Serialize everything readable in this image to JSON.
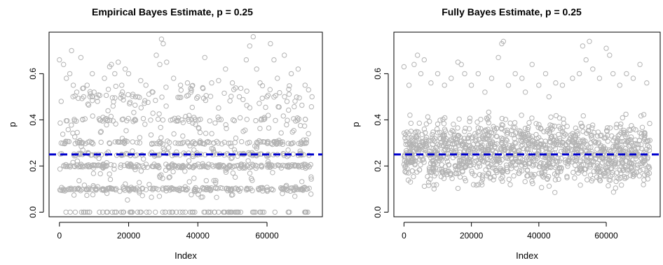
{
  "chart_data": [
    {
      "type": "scatter",
      "title": "Empirical Bayes Estimate, p = 0.25",
      "xlabel": "Index",
      "ylabel": "p",
      "xlim": [
        -3000,
        76000
      ],
      "ylim": [
        -0.02,
        0.78
      ],
      "xticks": [
        0,
        20000,
        40000,
        60000
      ],
      "xtick_labels": [
        "0",
        "20000",
        "40000",
        "60000"
      ],
      "yticks": [
        0.0,
        0.2,
        0.4,
        0.6
      ],
      "ytick_labels": [
        "0.0",
        "0.2",
        "0.4",
        "0.6"
      ],
      "grid": false,
      "colors": {
        "points": "#b3b3b3",
        "reference_line": "#0000cd"
      },
      "reference_line": {
        "y": 0.25,
        "style": "dashed"
      },
      "x_range": [
        0,
        73000
      ],
      "levels": [
        {
          "y": 0.0,
          "x_from": 0,
          "x_to": 73000,
          "count": 90
        },
        {
          "y": 0.1,
          "x_from": 0,
          "x_to": 73000,
          "count": 200
        },
        {
          "y": 0.2,
          "x_from": 0,
          "x_to": 73000,
          "count": 200
        },
        {
          "y": 0.25,
          "x_from": 0,
          "x_to": 73000,
          "count": 100
        },
        {
          "y": 0.3,
          "x_from": 0,
          "x_to": 73000,
          "count": 120
        },
        {
          "y": 0.4,
          "x_from": 0,
          "x_to": 73000,
          "count": 60
        },
        {
          "y": 0.5,
          "x_from": 0,
          "x_to": 73000,
          "count": 30
        }
      ],
      "series": [
        {
          "x": [
            0,
            500,
            1200,
            2000,
            3000,
            3500,
            4000,
            5000,
            6200,
            7000,
            8000,
            9500,
            10000,
            11000,
            13000,
            14500,
            15000,
            16000,
            17000,
            18000,
            19000,
            20000,
            22000,
            23500,
            25000,
            27000,
            28000,
            29000,
            29500,
            30000,
            31000,
            33000,
            35000,
            37000,
            38000,
            40000,
            42000,
            44000,
            46000,
            48000,
            50000,
            52000,
            54000,
            55000,
            56000,
            57000,
            58000,
            60000,
            61000,
            62000,
            63000,
            65000,
            67000,
            69000,
            71000,
            72000,
            73000
          ],
          "y": [
            0.66,
            0.48,
            0.64,
            0.58,
            0.6,
            0.7,
            0.55,
            0.52,
            0.67,
            0.5,
            0.55,
            0.6,
            0.52,
            0.48,
            0.58,
            0.63,
            0.64,
            0.6,
            0.65,
            0.55,
            0.62,
            0.6,
            0.5,
            0.57,
            0.55,
            0.52,
            0.68,
            0.64,
            0.75,
            0.73,
            0.65,
            0.58,
            0.55,
            0.56,
            0.52,
            0.5,
            0.67,
            0.56,
            0.57,
            0.62,
            0.56,
            0.5,
            0.66,
            0.72,
            0.76,
            0.62,
            0.56,
            0.5,
            0.73,
            0.66,
            0.58,
            0.68,
            0.6,
            0.62,
            0.55,
            0.53,
            0.5
          ]
        }
      ]
    },
    {
      "type": "scatter",
      "title": "Fully Bayes Estimate, p = 0.25",
      "xlabel": "Index",
      "ylabel": "p",
      "xlim": [
        -3000,
        76000
      ],
      "ylim": [
        -0.02,
        0.78
      ],
      "xticks": [
        0,
        20000,
        40000,
        60000
      ],
      "xtick_labels": [
        "0",
        "20000",
        "40000",
        "60000"
      ],
      "yticks": [
        0.0,
        0.2,
        0.4,
        0.6
      ],
      "ytick_labels": [
        "0.0",
        "0.2",
        "0.4",
        "0.6"
      ],
      "grid": false,
      "colors": {
        "points": "#b3b3b3",
        "reference_line": "#0000cd"
      },
      "reference_line": {
        "y": 0.25,
        "style": "dashed"
      },
      "x_range": [
        0,
        73000
      ],
      "y_range": [
        0.01,
        0.5
      ],
      "count": 1300,
      "series": [
        {
          "x": [
            0,
            1500,
            3000,
            4000,
            5000,
            6000,
            8000,
            10000,
            12000,
            14000,
            16000,
            17000,
            18000,
            20000,
            22000,
            24000,
            26000,
            28000,
            29000,
            29500,
            31000,
            33000,
            35000,
            36000,
            38000,
            40000,
            42000,
            43000,
            45000,
            47000,
            50000,
            52000,
            53000,
            54000,
            55000,
            56000,
            58000,
            60000,
            61000,
            62000,
            64000,
            66000,
            68000,
            70000,
            72000
          ],
          "y": [
            0.63,
            0.55,
            0.64,
            0.68,
            0.6,
            0.66,
            0.56,
            0.6,
            0.55,
            0.58,
            0.65,
            0.64,
            0.6,
            0.55,
            0.6,
            0.52,
            0.58,
            0.67,
            0.73,
            0.74,
            0.55,
            0.6,
            0.58,
            0.52,
            0.64,
            0.55,
            0.6,
            0.5,
            0.56,
            0.55,
            0.58,
            0.6,
            0.72,
            0.66,
            0.74,
            0.62,
            0.58,
            0.71,
            0.68,
            0.6,
            0.55,
            0.6,
            0.58,
            0.64,
            0.56
          ]
        }
      ]
    }
  ]
}
